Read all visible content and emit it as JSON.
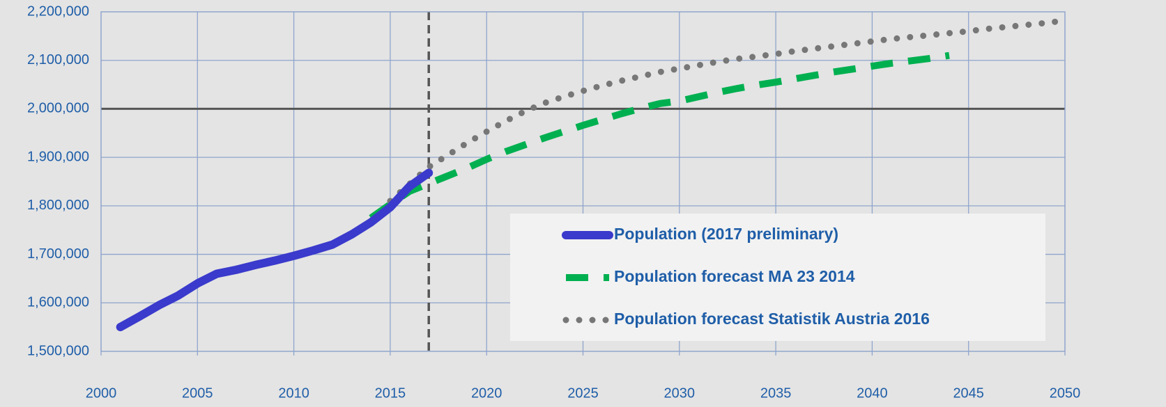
{
  "chart_data": {
    "type": "line",
    "xlim": [
      2000,
      2050
    ],
    "xticks": [
      2000,
      2005,
      2010,
      2015,
      2020,
      2025,
      2030,
      2035,
      2040,
      2045,
      2050
    ],
    "ylim": [
      1500000,
      2200000
    ],
    "yticks": [
      {
        "value": 1500000,
        "label": "1,500,000"
      },
      {
        "value": 1600000,
        "label": "1,600,000"
      },
      {
        "value": 1700000,
        "label": "1,700,000"
      },
      {
        "value": 1800000,
        "label": "1,800,000"
      },
      {
        "value": 1900000,
        "label": "1,900,000"
      },
      {
        "value": 2000000,
        "label": "2,000,000"
      },
      {
        "value": 2100000,
        "label": "2,100,000"
      },
      {
        "value": 2200000,
        "label": "2,200,000"
      }
    ],
    "grid": true,
    "legend": "lower right",
    "reference_lines": [
      {
        "axis": "y",
        "value": 2000000,
        "color": "#555555"
      },
      {
        "axis": "x",
        "value": 2017,
        "color": "#555555"
      }
    ],
    "series": [
      {
        "name": "Population (2017 preliminary)",
        "color": "#3a3acc",
        "style": "solid",
        "x": [
          2001,
          2002,
          2003,
          2004,
          2005,
          2006,
          2007,
          2008,
          2009,
          2010,
          2011,
          2012,
          2013,
          2014,
          2015,
          2016,
          2017
        ],
        "values": [
          1550000,
          1572000,
          1595000,
          1615000,
          1640000,
          1660000,
          1668000,
          1678000,
          1687000,
          1697000,
          1708000,
          1720000,
          1741000,
          1766000,
          1797000,
          1840000,
          1868000
        ]
      },
      {
        "name": "Population forecast MA 23 2014",
        "color": "#00b050",
        "style": "dashed",
        "x": [
          2014,
          2015,
          2016,
          2017,
          2018,
          2019,
          2020,
          2021,
          2022,
          2023,
          2024,
          2025,
          2026,
          2027,
          2028,
          2029,
          2030,
          2031,
          2032,
          2033,
          2034,
          2035,
          2036,
          2037,
          2038,
          2039,
          2040,
          2041,
          2042,
          2043,
          2044
        ],
        "values": [
          1775000,
          1803000,
          1830000,
          1846000,
          1862000,
          1878000,
          1896000,
          1912000,
          1926000,
          1940000,
          1953000,
          1966000,
          1978000,
          1990000,
          2001000,
          2011000,
          2016000,
          2025000,
          2034000,
          2042000,
          2049000,
          2055000,
          2062000,
          2069000,
          2076000,
          2082000,
          2088000,
          2094000,
          2099000,
          2104000,
          2110000
        ]
      },
      {
        "name": "Population forecast Statistik Austria 2016",
        "color": "#777777",
        "style": "dotted",
        "x": [
          2015,
          2016,
          2017,
          2018,
          2019,
          2020,
          2021,
          2022,
          2023,
          2024,
          2025,
          2026,
          2027,
          2028,
          2029,
          2030,
          2031,
          2032,
          2033,
          2034,
          2035,
          2036,
          2037,
          2038,
          2039,
          2040,
          2041,
          2042,
          2043,
          2044,
          2045,
          2046,
          2047,
          2048,
          2049,
          2050
        ],
        "values": [
          1810000,
          1845000,
          1880000,
          1905000,
          1930000,
          1953000,
          1975000,
          1995000,
          2012000,
          2025000,
          2037000,
          2048000,
          2058000,
          2067000,
          2076000,
          2083000,
          2090000,
          2097000,
          2103000,
          2108000,
          2113000,
          2119000,
          2124000,
          2129000,
          2134000,
          2139000,
          2144000,
          2148000,
          2152000,
          2156000,
          2160000,
          2165000,
          2169000,
          2173000,
          2177000,
          2182000
        ]
      }
    ]
  }
}
